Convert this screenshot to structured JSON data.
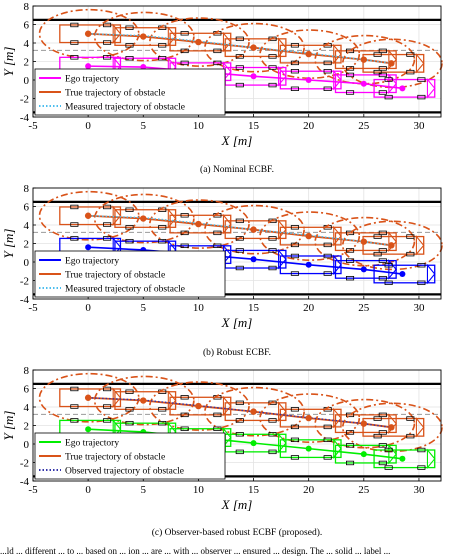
{
  "chart_data": [
    {
      "type": "line",
      "xlabel": "X [m]",
      "ylabel": "Y [m]",
      "xlim": [
        -5,
        32
      ],
      "ylim": [
        -4,
        8
      ],
      "xticks": [
        "-5",
        "0",
        "5",
        "10",
        "15",
        "20",
        "25",
        "30"
      ],
      "yticks": [
        "-4",
        "-2",
        "0",
        "2",
        "4",
        "6",
        "8"
      ],
      "grid": true,
      "legend_position": "bottom-left",
      "lane_bounds": [
        6.5,
        -3.5
      ],
      "lane_center": 3.2,
      "ego_color": "#ff00ff",
      "series": [
        {
          "name": "Ego trajectory",
          "color": "#ff00ff",
          "style": "solid",
          "x": [
            0,
            5,
            10,
            15,
            20,
            25,
            28.5
          ],
          "y": [
            1.5,
            1.4,
            0.9,
            0.4,
            0,
            -0.4,
            -0.9
          ]
        },
        {
          "name": "True trajectory of obstacle",
          "color": "#d95319",
          "style": "solid",
          "x": [
            0,
            5,
            10,
            15,
            20,
            25,
            27.5
          ],
          "y": [
            5,
            4.7,
            4.1,
            3.5,
            2.8,
            2.2,
            1.8
          ]
        },
        {
          "name": "Measured trajectory of obstacle",
          "color": "#4dbeee",
          "style": "dotted",
          "x": [
            0,
            5,
            10,
            15,
            20,
            25,
            27.5
          ],
          "y": [
            5,
            4.8,
            4.2,
            3.5,
            2.9,
            2.2,
            1.8
          ]
        }
      ],
      "caption": "(a)  Nominal ECBF."
    },
    {
      "type": "line",
      "xlabel": "X [m]",
      "ylabel": "Y [m]",
      "xlim": [
        -5,
        32
      ],
      "ylim": [
        -4,
        8
      ],
      "xticks": [
        "-5",
        "0",
        "5",
        "10",
        "15",
        "20",
        "25",
        "30"
      ],
      "yticks": [
        "-4",
        "-2",
        "0",
        "2",
        "4",
        "6",
        "8"
      ],
      "grid": true,
      "legend_position": "bottom-left",
      "lane_bounds": [
        6.5,
        -3.5
      ],
      "lane_center": 3.2,
      "ego_color": "#0000ff",
      "series": [
        {
          "name": "Ego trajectory",
          "color": "#0000ff",
          "style": "solid",
          "x": [
            0,
            5,
            10,
            15,
            20,
            25,
            28.5
          ],
          "y": [
            1.6,
            1.3,
            0.8,
            0.3,
            -0.3,
            -0.8,
            -1.3
          ]
        },
        {
          "name": "True trajectory of obstacle",
          "color": "#d95319",
          "style": "solid",
          "x": [
            0,
            5,
            10,
            15,
            20,
            25,
            27.5
          ],
          "y": [
            5,
            4.7,
            4.1,
            3.5,
            2.8,
            2.2,
            1.8
          ]
        },
        {
          "name": "Measured trajectory of obstacle",
          "color": "#4dbeee",
          "style": "dotted",
          "x": [
            0,
            5,
            10,
            15,
            20,
            25,
            27.5
          ],
          "y": [
            5,
            4.8,
            4.2,
            3.5,
            2.9,
            2.2,
            1.8
          ]
        }
      ],
      "caption": "(b)  Robust ECBF."
    },
    {
      "type": "line",
      "xlabel": "X [m]",
      "ylabel": "Y [m]",
      "xlim": [
        -5,
        32
      ],
      "ylim": [
        -4,
        8
      ],
      "xticks": [
        "-5",
        "0",
        "5",
        "10",
        "15",
        "20",
        "25",
        "30"
      ],
      "yticks": [
        "-4",
        "-2",
        "0",
        "2",
        "4",
        "6",
        "8"
      ],
      "grid": true,
      "legend_position": "bottom-left",
      "lane_bounds": [
        6.5,
        -3.5
      ],
      "lane_center": 3.2,
      "ego_color": "#00ee00",
      "series": [
        {
          "name": "Ego trajectory",
          "color": "#00ee00",
          "style": "solid",
          "x": [
            0,
            5,
            10,
            15,
            20,
            25,
            28.5
          ],
          "y": [
            1.6,
            1.3,
            0.7,
            0.1,
            -0.5,
            -1.1,
            -1.6
          ]
        },
        {
          "name": "True trajectory of obstacle",
          "color": "#d95319",
          "style": "solid",
          "x": [
            0,
            5,
            10,
            15,
            20,
            25,
            27.5
          ],
          "y": [
            5,
            4.7,
            4.1,
            3.5,
            2.8,
            2.2,
            1.8
          ]
        },
        {
          "name": "Observed trajectory of obstacle",
          "color": "#3333aa",
          "style": "dotted",
          "x": [
            0,
            5,
            10,
            15,
            20,
            25,
            27.5
          ],
          "y": [
            5,
            4.75,
            4.15,
            3.5,
            2.85,
            2.2,
            1.8
          ]
        }
      ],
      "caption": "(c)  Observer-based robust ECBF (proposed)."
    }
  ],
  "cut_text": "...ld ... different ... to ... based on ... ion ... are ... with ... observer ... ensured ... design. The ... solid ... label ..."
}
